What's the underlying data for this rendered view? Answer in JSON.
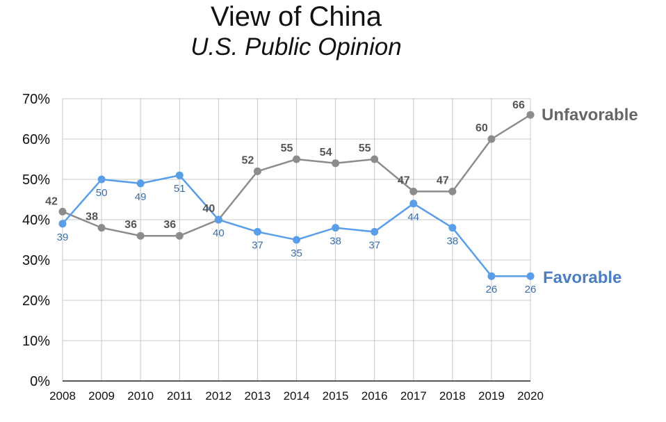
{
  "chart_data": {
    "type": "line",
    "title": "View of China",
    "subtitle": "U.S. Public Opinion",
    "x": [
      2008,
      2009,
      2010,
      2011,
      2012,
      2013,
      2014,
      2015,
      2016,
      2017,
      2018,
      2019,
      2020
    ],
    "x_tick_labels": [
      "2008",
      "2009",
      "2010",
      "2011",
      "2012",
      "2013",
      "2014",
      "2015",
      "2016",
      "2017",
      "2018",
      "2019",
      "2020"
    ],
    "y_tick_labels": [
      "0%",
      "10%",
      "20%",
      "30%",
      "40%",
      "50%",
      "60%",
      "70%"
    ],
    "ylim": [
      0,
      70
    ],
    "grid": true,
    "series": [
      {
        "name": "Unfavorable",
        "color": "#8c8c8c",
        "values": [
          42,
          38,
          36,
          36,
          40,
          52,
          55,
          54,
          55,
          47,
          47,
          60,
          66
        ],
        "labels": [
          "42",
          "38",
          "36",
          "36",
          "40",
          "52",
          "55",
          "54",
          "55",
          "47",
          "47",
          "60",
          "66"
        ]
      },
      {
        "name": "Favorable",
        "color": "#5a9ee8",
        "values": [
          39,
          50,
          49,
          51,
          40,
          37,
          35,
          38,
          37,
          44,
          38,
          26,
          26
        ],
        "labels": [
          "39",
          "50",
          "49",
          "51",
          "40",
          "37",
          "35",
          "38",
          "37",
          "44",
          "38",
          "26",
          "26"
        ]
      }
    ]
  }
}
